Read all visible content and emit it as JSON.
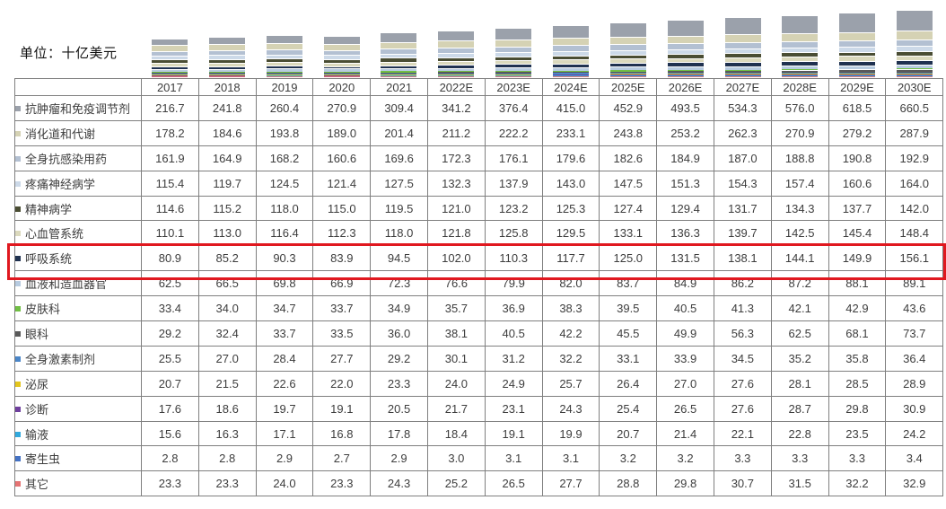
{
  "unit_label": "单位：十亿美元",
  "highlight": {
    "series": "呼吸系统",
    "color": "#e0181f"
  },
  "chart_data": {
    "type": "bar",
    "stacked": true,
    "legend_position": "table-rows-left",
    "grid": false,
    "categories": [
      "2017",
      "2018",
      "2019",
      "2020",
      "2021",
      "2022E",
      "2023E",
      "2024E",
      "2025E",
      "2026E",
      "2027E",
      "2028E",
      "2029E",
      "2030E"
    ],
    "series": [
      {
        "name": "抗肿瘤和免疫调节剂",
        "color": "#9ba1ab",
        "values": [
          216.7,
          241.8,
          260.4,
          270.9,
          309.4,
          341.2,
          376.4,
          415.0,
          452.9,
          493.5,
          534.3,
          576.0,
          618.5,
          660.5
        ]
      },
      {
        "name": "消化道和代谢",
        "color": "#d5d2b4",
        "values": [
          178.2,
          184.6,
          193.8,
          189.0,
          201.4,
          211.2,
          222.2,
          233.1,
          243.8,
          253.2,
          262.3,
          270.9,
          279.2,
          287.9
        ]
      },
      {
        "name": "全身抗感染用药",
        "color": "#b3c0d2",
        "values": [
          161.9,
          164.9,
          168.2,
          160.6,
          169.6,
          172.3,
          176.1,
          179.6,
          182.6,
          184.9,
          187.0,
          188.8,
          190.8,
          192.9
        ]
      },
      {
        "name": "疼痛神经病学",
        "color": "#ccd9e8",
        "values": [
          115.4,
          119.7,
          124.5,
          121.4,
          127.5,
          132.3,
          137.9,
          143.0,
          147.5,
          151.3,
          154.3,
          157.4,
          160.6,
          164.0
        ]
      },
      {
        "name": "精神病学",
        "color": "#4a4d33",
        "values": [
          114.6,
          115.2,
          118.0,
          115.0,
          119.5,
          121.0,
          123.2,
          125.3,
          127.4,
          129.4,
          131.7,
          134.3,
          137.7,
          142.0
        ]
      },
      {
        "name": "心血管系统",
        "color": "#dbd9bd",
        "values": [
          110.1,
          113.0,
          116.4,
          112.3,
          118.0,
          121.8,
          125.8,
          129.5,
          133.1,
          136.3,
          139.7,
          142.5,
          145.4,
          148.4
        ]
      },
      {
        "name": "呼吸系统",
        "color": "#1f3150",
        "values": [
          80.9,
          85.2,
          90.3,
          83.9,
          94.5,
          102.0,
          110.3,
          117.7,
          125.0,
          131.5,
          138.1,
          144.1,
          149.9,
          156.1
        ]
      },
      {
        "name": "血液和造血器官",
        "color": "#b7cbe0",
        "values": [
          62.5,
          66.5,
          69.8,
          66.9,
          72.3,
          76.6,
          79.9,
          82.0,
          83.7,
          84.9,
          86.2,
          87.2,
          88.1,
          89.1
        ]
      },
      {
        "name": "皮肤科",
        "color": "#71bf44",
        "values": [
          33.4,
          34.0,
          34.7,
          33.7,
          34.9,
          35.7,
          36.9,
          38.3,
          39.5,
          40.5,
          41.3,
          42.1,
          42.9,
          43.6
        ]
      },
      {
        "name": "眼科",
        "color": "#595959",
        "values": [
          29.2,
          32.4,
          33.7,
          33.5,
          36.0,
          38.1,
          40.5,
          42.2,
          45.5,
          49.9,
          56.3,
          62.5,
          68.1,
          73.7
        ]
      },
      {
        "name": "全身激素制剂",
        "color": "#4a86c8",
        "values": [
          25.5,
          27.0,
          28.4,
          27.7,
          29.2,
          30.1,
          31.2,
          32.2,
          33.1,
          33.9,
          34.5,
          35.2,
          35.8,
          36.4
        ]
      },
      {
        "name": "泌尿",
        "color": "#e3c51d",
        "values": [
          20.7,
          21.5,
          22.6,
          22.0,
          23.3,
          24.0,
          24.9,
          25.7,
          26.4,
          27.0,
          27.6,
          28.1,
          28.5,
          28.9
        ]
      },
      {
        "name": "诊断",
        "color": "#6f3f9e",
        "values": [
          17.6,
          18.6,
          19.7,
          19.1,
          20.5,
          21.7,
          23.1,
          24.3,
          25.4,
          26.5,
          27.6,
          28.7,
          29.8,
          30.9
        ]
      },
      {
        "name": "输液",
        "color": "#31a9dd",
        "values": [
          15.6,
          16.3,
          17.1,
          16.8,
          17.8,
          18.4,
          19.1,
          19.9,
          20.7,
          21.4,
          22.1,
          22.8,
          23.5,
          24.2
        ]
      },
      {
        "name": "寄生虫",
        "color": "#4472c4",
        "values": [
          2.8,
          2.8,
          2.9,
          2.7,
          2.9,
          3.0,
          3.1,
          3.1,
          3.2,
          3.2,
          3.3,
          3.3,
          3.3,
          3.4
        ]
      },
      {
        "name": "其它",
        "color": "#e57373",
        "values": [
          23.3,
          23.3,
          24.0,
          23.3,
          24.3,
          25.2,
          26.5,
          27.7,
          28.8,
          29.8,
          30.7,
          31.5,
          32.2,
          32.9
        ]
      }
    ]
  }
}
